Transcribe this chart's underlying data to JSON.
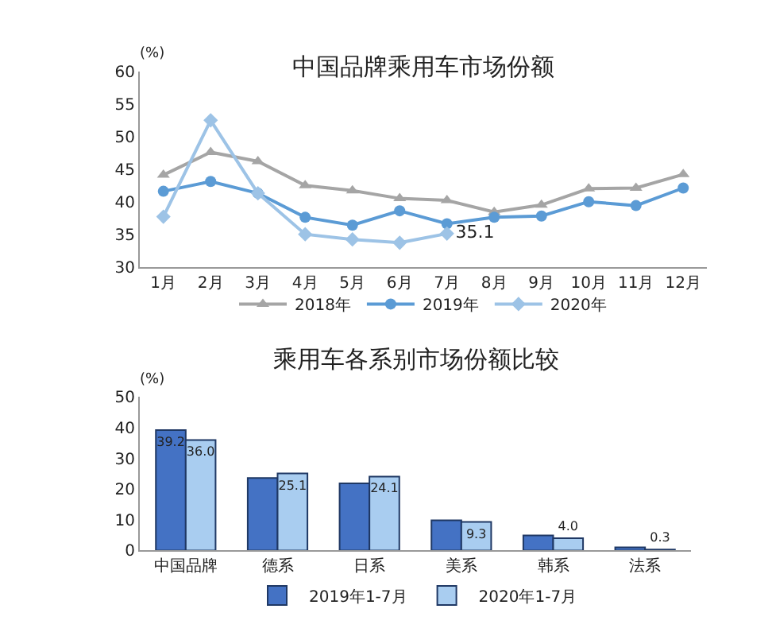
{
  "chart_data": [
    {
      "type": "line",
      "title": "中国品牌乘用车市场份额",
      "ylabel": "(%)",
      "categories": [
        "1月",
        "2月",
        "3月",
        "4月",
        "5月",
        "6月",
        "7月",
        "8月",
        "9月",
        "10月",
        "11月",
        "12月"
      ],
      "series": [
        {
          "name": "2018年",
          "color": "#a5a5a5",
          "marker": "triangle",
          "values": [
            44.1,
            47.6,
            46.2,
            42.5,
            41.7,
            40.5,
            40.2,
            38.4,
            39.5,
            42.0,
            42.1,
            44.2
          ]
        },
        {
          "name": "2019年",
          "color": "#5b9bd5",
          "marker": "circle",
          "values": [
            41.6,
            43.1,
            41.3,
            37.6,
            36.4,
            38.6,
            36.6,
            37.6,
            37.8,
            40.0,
            39.4,
            42.1
          ]
        },
        {
          "name": "2020年",
          "color": "#9dc3e6",
          "marker": "diamond",
          "values": [
            37.7,
            52.5,
            41.3,
            35.0,
            34.2,
            33.7,
            35.1,
            null,
            null,
            null,
            null,
            null
          ],
          "value_labels": [
            null,
            null,
            null,
            null,
            null,
            null,
            "35.1",
            null,
            null,
            null,
            null,
            null
          ]
        }
      ],
      "ylim": [
        30,
        60
      ],
      "yticks": [
        30,
        35,
        40,
        45,
        50,
        55,
        60
      ],
      "grid": false,
      "legend": "bottom"
    },
    {
      "type": "bar",
      "title": "乘用车各系别市场份额比较",
      "ylabel": "(%)",
      "categories": [
        "中国品牌",
        "德系",
        "日系",
        "美系",
        "韩系",
        "法系"
      ],
      "series": [
        {
          "name": "2019年1-7月",
          "color": "#4472c4",
          "values": [
            39.2,
            23.6,
            21.9,
            9.8,
            4.9,
            1.0
          ],
          "value_labels": [
            "39.2",
            null,
            null,
            null,
            null,
            null
          ]
        },
        {
          "name": "2020年1-7月",
          "color": "#a9cdf0",
          "values": [
            36.0,
            25.1,
            24.1,
            9.3,
            4.0,
            0.3
          ],
          "value_labels": [
            "36.0",
            "25.1",
            "24.1",
            "9.3",
            "4.0",
            "0.3"
          ]
        }
      ],
      "ylim": [
        0,
        50
      ],
      "yticks": [
        0,
        10,
        20,
        30,
        40,
        50
      ],
      "grid": false,
      "legend": "bottom"
    }
  ]
}
